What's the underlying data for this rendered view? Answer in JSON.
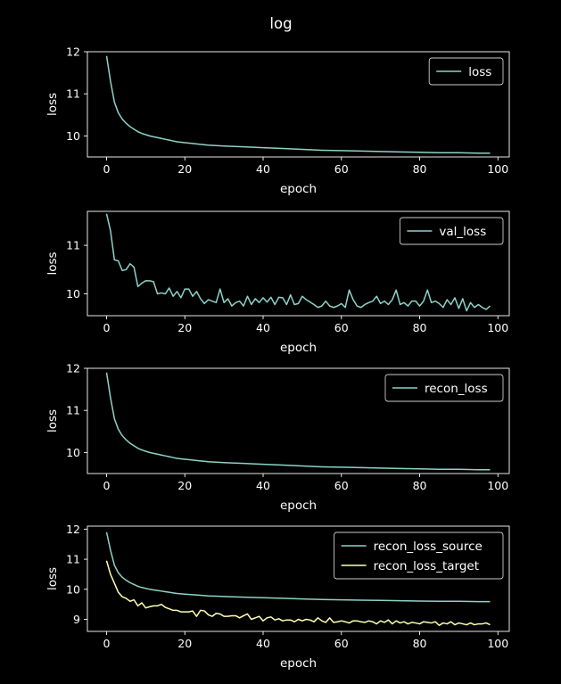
{
  "figure": {
    "title": "log",
    "background": "#000000",
    "foreground": "#ffffff"
  },
  "chart_data": [
    {
      "type": "line",
      "xlabel": "epoch",
      "ylabel": "loss",
      "xlim": [
        -4.9,
        102.9
      ],
      "ylim": [
        9.5,
        12.0
      ],
      "xticks": [
        0,
        20,
        40,
        60,
        80,
        100
      ],
      "yticks": [
        10,
        11,
        12
      ],
      "legend": "top-right",
      "series": [
        {
          "name": "loss",
          "color": "#8dd3c7",
          "x": [
            0,
            1,
            2,
            3,
            4,
            5,
            6,
            7,
            8,
            9,
            10,
            11,
            12,
            13,
            14,
            15,
            16,
            17,
            18,
            19,
            20,
            22,
            24,
            26,
            28,
            30,
            35,
            40,
            45,
            50,
            55,
            60,
            65,
            70,
            75,
            80,
            85,
            90,
            95,
            98
          ],
          "y": [
            11.9,
            11.3,
            10.8,
            10.55,
            10.4,
            10.3,
            10.22,
            10.16,
            10.1,
            10.06,
            10.03,
            10.0,
            9.98,
            9.96,
            9.94,
            9.92,
            9.9,
            9.88,
            9.86,
            9.85,
            9.84,
            9.82,
            9.8,
            9.78,
            9.77,
            9.76,
            9.74,
            9.72,
            9.7,
            9.68,
            9.66,
            9.65,
            9.64,
            9.63,
            9.62,
            9.61,
            9.6,
            9.6,
            9.59,
            9.59
          ]
        }
      ]
    },
    {
      "type": "line",
      "xlabel": "epoch",
      "ylabel": "loss",
      "xlim": [
        -4.9,
        102.9
      ],
      "ylim": [
        9.55,
        11.7
      ],
      "xticks": [
        0,
        20,
        40,
        60,
        80,
        100
      ],
      "yticks": [
        10,
        11
      ],
      "legend": "top-right",
      "series": [
        {
          "name": "val_loss",
          "color": "#8dd3c7",
          "x": [
            0,
            1,
            2,
            3,
            4,
            5,
            6,
            7,
            8,
            9,
            10,
            11,
            12,
            13,
            14,
            15,
            16,
            17,
            18,
            19,
            20,
            21,
            22,
            23,
            24,
            25,
            26,
            27,
            28,
            29,
            30,
            31,
            32,
            33,
            34,
            35,
            36,
            37,
            38,
            39,
            40,
            41,
            42,
            43,
            44,
            45,
            46,
            47,
            48,
            49,
            50,
            51,
            52,
            53,
            54,
            55,
            56,
            57,
            58,
            59,
            60,
            61,
            62,
            63,
            64,
            65,
            66,
            67,
            68,
            69,
            70,
            71,
            72,
            73,
            74,
            75,
            76,
            77,
            78,
            79,
            80,
            81,
            82,
            83,
            84,
            85,
            86,
            87,
            88,
            89,
            90,
            91,
            92,
            93,
            94,
            95,
            96,
            97,
            98
          ],
          "y": [
            11.65,
            11.3,
            10.7,
            10.68,
            10.48,
            10.5,
            10.62,
            10.55,
            10.15,
            10.22,
            10.27,
            10.27,
            10.25,
            10.0,
            10.02,
            10.0,
            10.12,
            9.95,
            10.05,
            9.92,
            10.1,
            10.1,
            9.95,
            10.05,
            9.9,
            9.8,
            9.88,
            9.85,
            9.82,
            10.1,
            9.82,
            9.9,
            9.75,
            9.82,
            9.85,
            9.75,
            9.95,
            9.78,
            9.9,
            9.82,
            9.92,
            9.83,
            9.93,
            9.78,
            9.93,
            9.92,
            9.78,
            9.98,
            9.78,
            9.8,
            9.95,
            9.88,
            9.83,
            9.78,
            9.72,
            9.75,
            9.85,
            9.75,
            9.72,
            9.75,
            9.8,
            9.72,
            10.08,
            9.88,
            9.75,
            9.72,
            9.78,
            9.82,
            9.85,
            9.95,
            9.8,
            9.85,
            9.78,
            9.88,
            10.08,
            9.78,
            9.82,
            9.75,
            9.85,
            9.85,
            9.75,
            9.85,
            10.08,
            9.82,
            9.85,
            9.8,
            9.72,
            9.88,
            9.78,
            9.92,
            9.7,
            9.9,
            9.65,
            9.82,
            9.72,
            9.78,
            9.72,
            9.68,
            9.75
          ]
        }
      ]
    },
    {
      "type": "line",
      "xlabel": "epoch",
      "ylabel": "loss",
      "xlim": [
        -4.9,
        102.9
      ],
      "ylim": [
        9.5,
        12.0
      ],
      "xticks": [
        0,
        20,
        40,
        60,
        80,
        100
      ],
      "yticks": [
        10,
        11,
        12
      ],
      "legend": "top-right",
      "series": [
        {
          "name": "recon_loss",
          "color": "#8dd3c7",
          "x": [
            0,
            1,
            2,
            3,
            4,
            5,
            6,
            7,
            8,
            9,
            10,
            11,
            12,
            13,
            14,
            15,
            16,
            17,
            18,
            19,
            20,
            22,
            24,
            26,
            28,
            30,
            35,
            40,
            45,
            50,
            55,
            60,
            65,
            70,
            75,
            80,
            85,
            90,
            95,
            98
          ],
          "y": [
            11.9,
            11.3,
            10.8,
            10.55,
            10.4,
            10.3,
            10.22,
            10.16,
            10.1,
            10.06,
            10.03,
            10.0,
            9.98,
            9.96,
            9.94,
            9.92,
            9.9,
            9.88,
            9.86,
            9.85,
            9.84,
            9.82,
            9.8,
            9.78,
            9.77,
            9.76,
            9.74,
            9.72,
            9.7,
            9.68,
            9.66,
            9.65,
            9.64,
            9.63,
            9.62,
            9.61,
            9.6,
            9.6,
            9.59,
            9.59
          ]
        }
      ]
    },
    {
      "type": "line",
      "xlabel": "epoch",
      "ylabel": "loss",
      "xlim": [
        -4.9,
        102.9
      ],
      "ylim": [
        8.6,
        12.1
      ],
      "xticks": [
        0,
        20,
        40,
        60,
        80,
        100
      ],
      "yticks": [
        9,
        10,
        11,
        12
      ],
      "legend": "top-right",
      "series": [
        {
          "name": "recon_loss_source",
          "color": "#8dd3c7",
          "x": [
            0,
            1,
            2,
            3,
            4,
            5,
            6,
            7,
            8,
            9,
            10,
            11,
            12,
            13,
            14,
            15,
            16,
            17,
            18,
            19,
            20,
            22,
            24,
            26,
            28,
            30,
            35,
            40,
            45,
            50,
            55,
            60,
            65,
            70,
            75,
            80,
            85,
            90,
            95,
            98
          ],
          "y": [
            11.9,
            11.3,
            10.8,
            10.55,
            10.4,
            10.3,
            10.22,
            10.16,
            10.1,
            10.06,
            10.03,
            10.0,
            9.98,
            9.96,
            9.94,
            9.92,
            9.9,
            9.88,
            9.86,
            9.85,
            9.84,
            9.82,
            9.8,
            9.78,
            9.77,
            9.76,
            9.74,
            9.72,
            9.7,
            9.68,
            9.66,
            9.65,
            9.64,
            9.63,
            9.62,
            9.61,
            9.6,
            9.6,
            9.59,
            9.59
          ]
        },
        {
          "name": "recon_loss_target",
          "color": "#ffffb3",
          "x": [
            0,
            1,
            2,
            3,
            4,
            5,
            6,
            7,
            8,
            9,
            10,
            11,
            12,
            13,
            14,
            15,
            16,
            17,
            18,
            19,
            20,
            21,
            22,
            23,
            24,
            25,
            26,
            27,
            28,
            29,
            30,
            31,
            32,
            33,
            34,
            35,
            36,
            37,
            38,
            39,
            40,
            41,
            42,
            43,
            44,
            45,
            46,
            47,
            48,
            49,
            50,
            51,
            52,
            53,
            54,
            55,
            56,
            57,
            58,
            59,
            60,
            61,
            62,
            63,
            64,
            65,
            66,
            67,
            68,
            69,
            70,
            71,
            72,
            73,
            74,
            75,
            76,
            77,
            78,
            79,
            80,
            81,
            82,
            83,
            84,
            85,
            86,
            87,
            88,
            89,
            90,
            91,
            92,
            93,
            94,
            95,
            96,
            97,
            98
          ],
          "y": [
            10.95,
            10.5,
            10.2,
            9.9,
            9.75,
            9.7,
            9.6,
            9.65,
            9.45,
            9.55,
            9.38,
            9.42,
            9.45,
            9.45,
            9.5,
            9.4,
            9.35,
            9.3,
            9.3,
            9.25,
            9.25,
            9.25,
            9.28,
            9.1,
            9.3,
            9.28,
            9.15,
            9.1,
            9.2,
            9.18,
            9.1,
            9.1,
            9.12,
            9.12,
            9.05,
            9.12,
            9.18,
            9.0,
            9.05,
            9.1,
            8.95,
            9.05,
            9.08,
            8.98,
            9.02,
            8.95,
            8.98,
            8.98,
            8.92,
            9.0,
            8.95,
            9.0,
            8.98,
            8.92,
            9.05,
            8.95,
            8.9,
            9.05,
            8.9,
            8.92,
            8.95,
            8.92,
            8.88,
            8.95,
            8.95,
            8.92,
            8.9,
            8.95,
            8.92,
            8.85,
            8.95,
            8.9,
            8.98,
            8.85,
            8.95,
            8.88,
            8.92,
            8.85,
            8.9,
            8.88,
            8.85,
            8.92,
            8.9,
            8.88,
            8.92,
            8.8,
            8.88,
            8.85,
            8.92,
            8.82,
            8.88,
            8.85,
            8.82,
            8.88,
            8.82,
            8.85,
            8.85,
            8.88,
            8.82
          ]
        }
      ]
    }
  ]
}
